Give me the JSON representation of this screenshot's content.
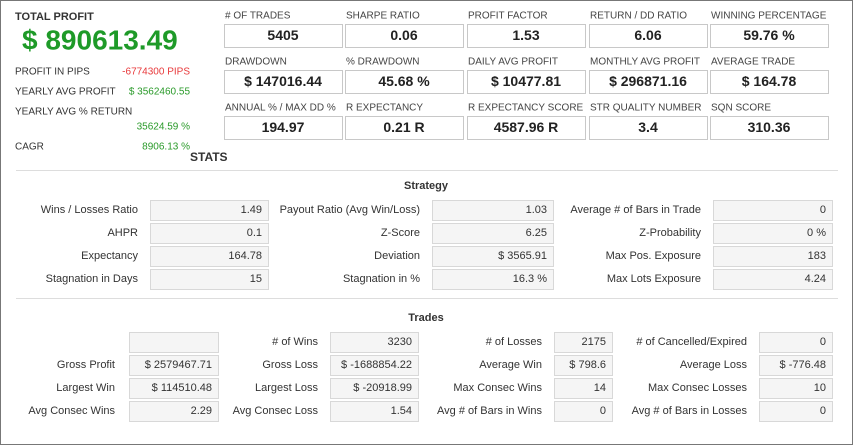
{
  "summary": {
    "title": "TOTAL PROFIT",
    "value": "$ 890613.49",
    "rows": [
      {
        "label": "PROFIT IN PIPS",
        "value": "-6774300 PIPS",
        "color": "#e8393b"
      },
      {
        "label": "YEARLY AVG PROFIT",
        "value": "$ 3562460.55",
        "color": "#2a9a2a"
      },
      {
        "label": "YEARLY AVG % RETURN",
        "value": "35624.59 %",
        "color": "#2a9a2a"
      },
      {
        "label": "CAGR",
        "value": "8906.13 %",
        "color": "#2a9a2a"
      }
    ]
  },
  "metrics": [
    {
      "label": "# OF TRADES",
      "value": "5405"
    },
    {
      "label": "SHARPE RATIO",
      "value": "0.06"
    },
    {
      "label": "PROFIT FACTOR",
      "value": "1.53"
    },
    {
      "label": "RETURN / DD RATIO",
      "value": "6.06"
    },
    {
      "label": "WINNING PERCENTAGE",
      "value": "59.76 %"
    },
    {
      "label": "DRAWDOWN",
      "value": "$ 147016.44"
    },
    {
      "label": "% DRAWDOWN",
      "value": "45.68 %"
    },
    {
      "label": "DAILY AVG PROFIT",
      "value": "$ 10477.81"
    },
    {
      "label": "MONTHLY AVG PROFIT",
      "value": "$ 296871.16"
    },
    {
      "label": "AVERAGE TRADE",
      "value": "$ 164.78"
    },
    {
      "label": "ANNUAL % / MAX DD %",
      "value": "194.97"
    },
    {
      "label": "R EXPECTANCY",
      "value": "0.21 R"
    },
    {
      "label": "R EXPECTANCY SCORE",
      "value": "4587.96 R"
    },
    {
      "label": "STR QUALITY NUMBER",
      "value": "3.4"
    },
    {
      "label": "SQN SCORE",
      "value": "310.36"
    }
  ],
  "stats": {
    "title": "STATS",
    "strategy": {
      "title": "Strategy",
      "rows": [
        [
          {
            "label": "Wins / Losses Ratio",
            "value": "1.49"
          },
          {
            "label": "Payout Ratio (Avg Win/Loss)",
            "value": "1.03"
          },
          {
            "label": "Average # of Bars in Trade",
            "value": "0"
          }
        ],
        [
          {
            "label": "AHPR",
            "value": "0.1"
          },
          {
            "label": "Z-Score",
            "value": "6.25"
          },
          {
            "label": "Z-Probability",
            "value": "0 %"
          }
        ],
        [
          {
            "label": "Expectancy",
            "value": "164.78"
          },
          {
            "label": "Deviation",
            "value": "$ 3565.91"
          },
          {
            "label": "Max Pos. Exposure",
            "value": "183"
          }
        ],
        [
          {
            "label": "Stagnation in Days",
            "value": "15"
          },
          {
            "label": "Stagnation in %",
            "value": "16.3 %"
          },
          {
            "label": "Max Lots Exposure",
            "value": "4.24"
          }
        ]
      ]
    },
    "trades": {
      "title": "Trades",
      "rows": [
        [
          {
            "label": "# of Wins",
            "value": "3230"
          },
          {
            "label": "# of Losses",
            "value": "2175"
          },
          {
            "label": "# of Cancelled/Expired",
            "value": "0"
          }
        ],
        [
          {
            "label": "Gross Profit",
            "value": "$ 2579467.71"
          },
          {
            "label": "Gross Loss",
            "value": "$ -1688854.22"
          },
          {
            "label": "Average Win",
            "value": "$ 798.6"
          },
          {
            "label": "Average Loss",
            "value": "$ -776.48"
          }
        ],
        [
          {
            "label": "Largest Win",
            "value": "$ 114510.48"
          },
          {
            "label": "Largest Loss",
            "value": "$ -20918.99"
          },
          {
            "label": "Max Consec Wins",
            "value": "14"
          },
          {
            "label": "Max Consec Losses",
            "value": "10"
          }
        ],
        [
          {
            "label": "Avg Consec Wins",
            "value": "2.29"
          },
          {
            "label": "Avg Consec Loss",
            "value": "1.54"
          },
          {
            "label": "Avg # of Bars in Wins",
            "value": "0"
          },
          {
            "label": "Avg # of Bars in Losses",
            "value": "0"
          }
        ]
      ]
    }
  }
}
